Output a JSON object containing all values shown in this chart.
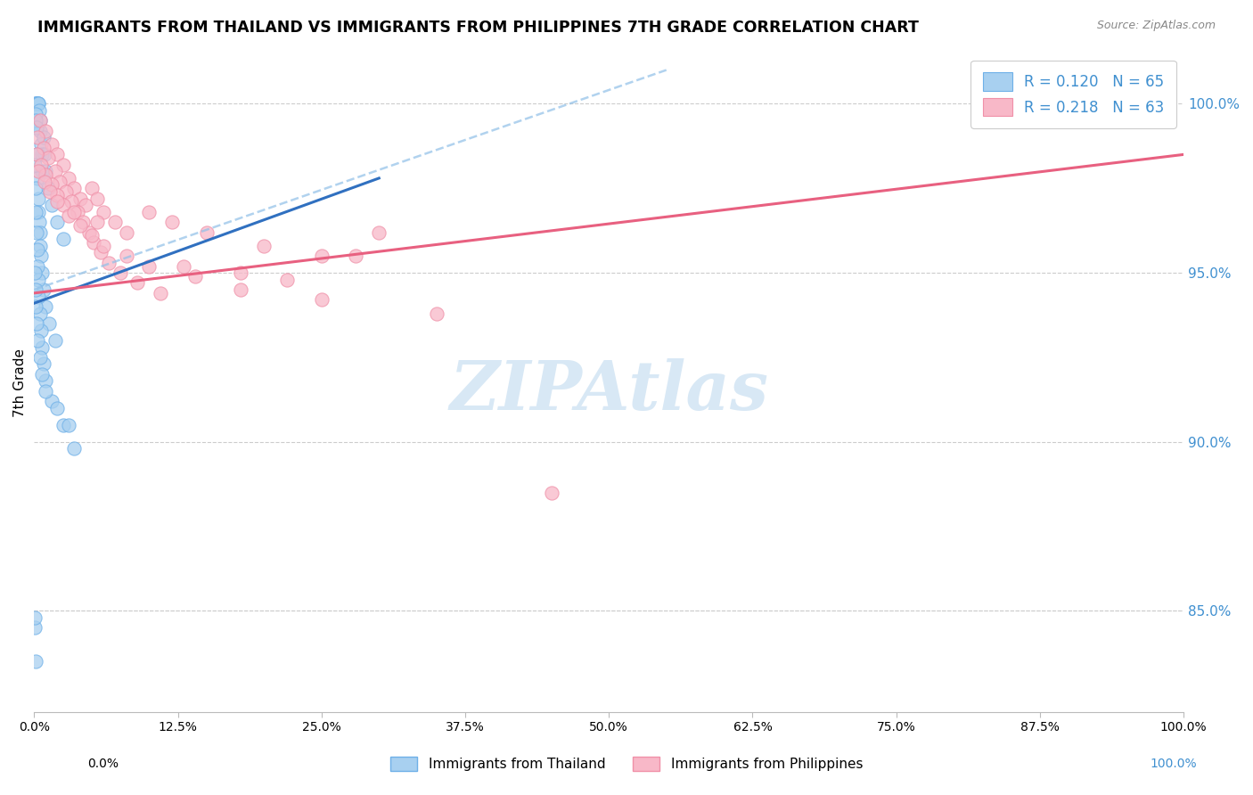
{
  "title": "IMMIGRANTS FROM THAILAND VS IMMIGRANTS FROM PHILIPPINES 7TH GRADE CORRELATION CHART",
  "source": "Source: ZipAtlas.com",
  "ylabel": "7th Grade",
  "right_yticks": [
    85.0,
    90.0,
    95.0,
    100.0
  ],
  "legend_blue_r": "R = 0.120",
  "legend_blue_n": "N = 65",
  "legend_pink_r": "R = 0.218",
  "legend_pink_n": "N = 63",
  "color_blue_fill": "#A8D0F0",
  "color_blue_edge": "#6EB0E8",
  "color_pink_fill": "#F8B8C8",
  "color_pink_edge": "#F090A8",
  "color_blue_line": "#3070C0",
  "color_pink_line": "#E86080",
  "color_blue_dash": "#90C0E8",
  "color_text_blue": "#4090D0",
  "color_right_axis": "#4090D0",
  "grid_color": "#CCCCCC",
  "background_color": "#FFFFFF",
  "xmin": 0.0,
  "xmax": 100.0,
  "ymin": 82.0,
  "ymax": 101.5,
  "blue_trend_x0": 0.0,
  "blue_trend_y0": 94.1,
  "blue_trend_x1": 30.0,
  "blue_trend_y1": 97.8,
  "pink_trend_x0": 0.0,
  "pink_trend_y0": 94.4,
  "pink_trend_x1": 100.0,
  "pink_trend_y1": 98.5,
  "dash_trend_x0": 0.0,
  "dash_trend_y0": 94.5,
  "dash_trend_x1": 55.0,
  "dash_trend_y1": 101.0,
  "blue_scatter_x": [
    0.1,
    0.15,
    0.2,
    0.25,
    0.3,
    0.35,
    0.4,
    0.45,
    0.5,
    0.55,
    0.6,
    0.65,
    0.7,
    0.8,
    0.9,
    1.0,
    1.2,
    1.5,
    2.0,
    2.5,
    0.1,
    0.15,
    0.2,
    0.25,
    0.3,
    0.35,
    0.4,
    0.45,
    0.5,
    0.55,
    0.6,
    0.7,
    0.8,
    1.0,
    1.3,
    1.8,
    0.05,
    0.1,
    0.15,
    0.2,
    0.25,
    0.3,
    0.35,
    0.4,
    0.5,
    0.6,
    0.7,
    0.8,
    1.0,
    1.5,
    2.5,
    3.5,
    0.05,
    0.1,
    0.15,
    0.2,
    0.3,
    0.5,
    0.7,
    1.0,
    2.0,
    3.0,
    0.05,
    0.08,
    0.12
  ],
  "blue_scatter_y": [
    100.0,
    100.0,
    100.0,
    100.0,
    100.0,
    100.0,
    100.0,
    99.8,
    99.5,
    99.2,
    98.8,
    98.5,
    98.0,
    99.0,
    98.5,
    98.0,
    97.5,
    97.0,
    96.5,
    96.0,
    99.7,
    99.5,
    99.3,
    98.5,
    97.8,
    97.2,
    96.8,
    96.5,
    96.2,
    95.8,
    95.5,
    95.0,
    94.5,
    94.0,
    93.5,
    93.0,
    98.2,
    97.5,
    96.8,
    96.2,
    95.7,
    95.2,
    94.8,
    94.3,
    93.8,
    93.3,
    92.8,
    92.3,
    91.8,
    91.2,
    90.5,
    89.8,
    95.0,
    94.5,
    94.0,
    93.5,
    93.0,
    92.5,
    92.0,
    91.5,
    91.0,
    90.5,
    84.5,
    84.8,
    83.5
  ],
  "pink_scatter_x": [
    0.5,
    1.0,
    1.5,
    2.0,
    2.5,
    3.0,
    3.5,
    4.0,
    4.5,
    5.0,
    5.5,
    6.0,
    7.0,
    8.0,
    10.0,
    12.0,
    15.0,
    20.0,
    25.0,
    30.0,
    0.3,
    0.8,
    1.2,
    1.8,
    2.2,
    2.8,
    3.2,
    3.8,
    4.2,
    4.8,
    5.2,
    5.8,
    6.5,
    7.5,
    9.0,
    11.0,
    13.0,
    18.0,
    22.0,
    28.0,
    0.2,
    0.6,
    1.0,
    1.5,
    2.0,
    2.5,
    3.0,
    4.0,
    5.0,
    6.0,
    8.0,
    10.0,
    14.0,
    18.0,
    25.0,
    35.0,
    45.0,
    0.4,
    0.9,
    1.4,
    2.0,
    3.5,
    5.5
  ],
  "pink_scatter_y": [
    99.5,
    99.2,
    98.8,
    98.5,
    98.2,
    97.8,
    97.5,
    97.2,
    97.0,
    97.5,
    97.2,
    96.8,
    96.5,
    96.2,
    96.8,
    96.5,
    96.2,
    95.8,
    95.5,
    96.2,
    99.0,
    98.7,
    98.4,
    98.0,
    97.7,
    97.4,
    97.1,
    96.8,
    96.5,
    96.2,
    95.9,
    95.6,
    95.3,
    95.0,
    94.7,
    94.4,
    95.2,
    95.0,
    94.8,
    95.5,
    98.5,
    98.2,
    97.9,
    97.6,
    97.3,
    97.0,
    96.7,
    96.4,
    96.1,
    95.8,
    95.5,
    95.2,
    94.9,
    94.5,
    94.2,
    93.8,
    88.5,
    98.0,
    97.7,
    97.4,
    97.1,
    96.8,
    96.5
  ]
}
